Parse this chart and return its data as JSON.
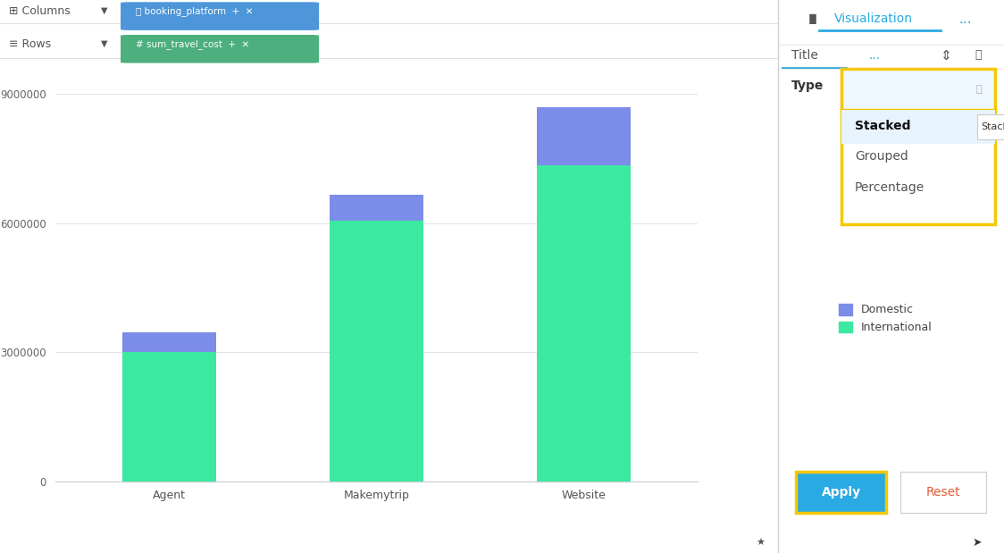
{
  "categories": [
    "Agent",
    "Makemytrip",
    "Website"
  ],
  "international_values": [
    3000000,
    6050000,
    7350000
  ],
  "domestic_values": [
    450000,
    600000,
    1350000
  ],
  "international_color": "#3de8a0",
  "domestic_color": "#7b8de8",
  "ylim": [
    0,
    9000000
  ],
  "yticks": [
    0,
    3000000,
    6000000,
    9000000
  ],
  "legend_domestic": "Domestic",
  "legend_international": "International",
  "right_panel_title": "Visualization",
  "type_label": "Type",
  "type_placeholder": "Stacked",
  "dropdown_items": [
    "Stacked",
    "Grouped",
    "Percentage"
  ],
  "title_label": "Title",
  "apply_btn": "Apply",
  "reset_btn": "Reset"
}
